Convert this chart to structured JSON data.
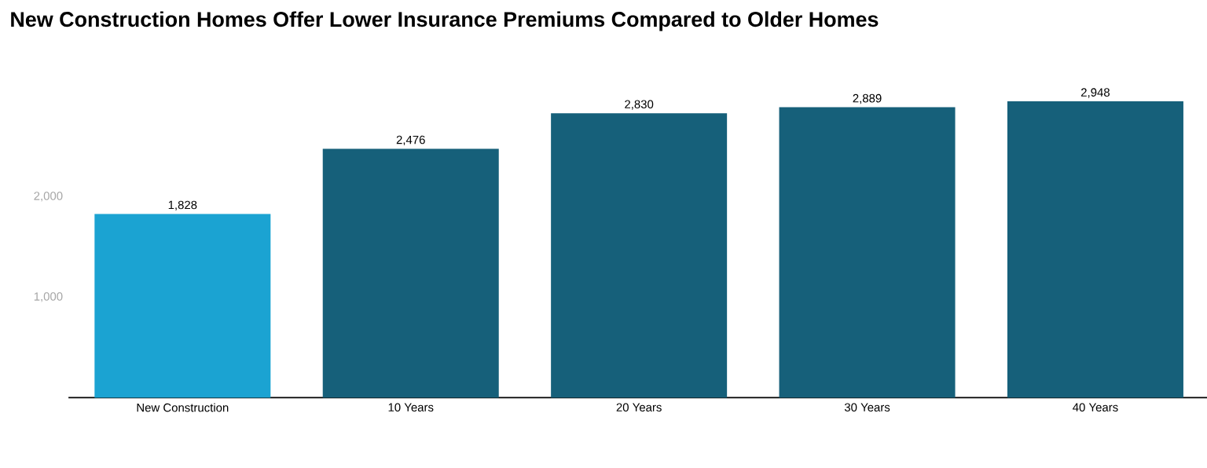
{
  "chart_data": {
    "type": "bar",
    "title": "New Construction Homes Offer Lower Insurance Premiums Compared to Older Homes",
    "categories": [
      "New Construction",
      "10 Years",
      "20 Years",
      "30 Years",
      "40 Years"
    ],
    "values": [
      1828,
      2476,
      2830,
      2889,
      2948
    ],
    "colors": [
      "#1ba3d2",
      "#16607a",
      "#16607a",
      "#16607a",
      "#16607a"
    ],
    "value_labels": [
      "1,828",
      "2,476",
      "2,830",
      "2,889",
      "2,948"
    ],
    "ylim": [
      0,
      3000
    ],
    "yticks": [
      {
        "value": 1000,
        "label": "1,000"
      },
      {
        "value": 2000,
        "label": "2,000"
      }
    ],
    "grid": false
  }
}
